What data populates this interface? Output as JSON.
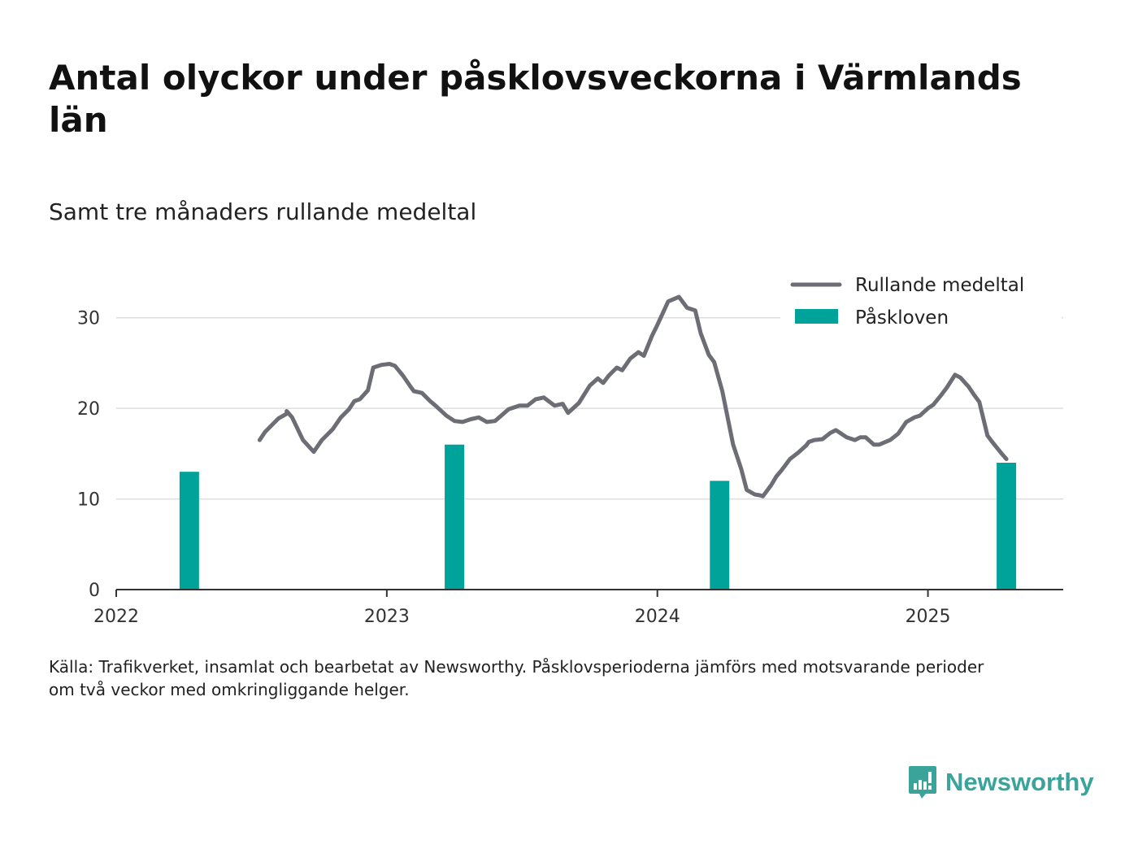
{
  "title": "Antal olyckor under påsklovsveckorna i Värmlands län",
  "subtitle": "Samt tre månaders rullande medeltal",
  "source_line1": "Källa: Trafikverket, insamlat och bearbetat av Newsworthy. Påsklovsperioderna jämförs med motsvarande perioder",
  "source_line2": "om två veckor med omkringliggande helger.",
  "brand": {
    "name": "Newsworthy",
    "icon": "newsworthy-logo-icon",
    "color": "#3aa39a"
  },
  "chart_data": {
    "type": "bar+line",
    "x_axis": {
      "type": "time",
      "range": [
        2022.0,
        2025.5
      ],
      "ticks": [
        "2022",
        "2023",
        "2024",
        "2025"
      ]
    },
    "y_axis": {
      "range": [
        0,
        35
      ],
      "ticks": [
        0,
        10,
        20,
        30
      ],
      "grid": true
    },
    "legend": {
      "placement": "top-right",
      "items": [
        {
          "label": "Rullande medeltal",
          "kind": "line",
          "color": "#6d6e75"
        },
        {
          "label": "Påskloven",
          "kind": "bar",
          "color": "#00a39a"
        }
      ]
    },
    "series": [
      {
        "name": "Påskloven",
        "kind": "bar",
        "color": "#00a39a",
        "points": [
          {
            "x": 2022.27,
            "y": 13
          },
          {
            "x": 2023.25,
            "y": 16
          },
          {
            "x": 2024.23,
            "y": 12
          },
          {
            "x": 2025.29,
            "y": 14
          }
        ]
      },
      {
        "name": "Rullande medeltal",
        "kind": "line",
        "color": "#6d6e75",
        "points": [
          [
            2022.53,
            16.5
          ],
          [
            2022.55,
            17.4
          ],
          [
            2022.6,
            18.9
          ],
          [
            2022.63,
            19.4
          ],
          [
            2022.63,
            19.7
          ],
          [
            2022.65,
            19.0
          ],
          [
            2022.69,
            16.5
          ],
          [
            2022.73,
            15.2
          ],
          [
            2022.76,
            16.5
          ],
          [
            2022.8,
            17.7
          ],
          [
            2022.83,
            19.0
          ],
          [
            2022.86,
            19.9
          ],
          [
            2022.88,
            20.8
          ],
          [
            2022.9,
            21.0
          ],
          [
            2022.93,
            22.0
          ],
          [
            2022.95,
            24.5
          ],
          [
            2022.98,
            24.8
          ],
          [
            2023.01,
            24.9
          ],
          [
            2023.03,
            24.7
          ],
          [
            2023.06,
            23.6
          ],
          [
            2023.09,
            22.3
          ],
          [
            2023.1,
            21.9
          ],
          [
            2023.13,
            21.7
          ],
          [
            2023.16,
            20.8
          ],
          [
            2023.18,
            20.3
          ],
          [
            2023.22,
            19.2
          ],
          [
            2023.25,
            18.6
          ],
          [
            2023.28,
            18.5
          ],
          [
            2023.31,
            18.8
          ],
          [
            2023.34,
            19.0
          ],
          [
            2023.37,
            18.5
          ],
          [
            2023.4,
            18.6
          ],
          [
            2023.45,
            19.9
          ],
          [
            2023.49,
            20.3
          ],
          [
            2023.52,
            20.3
          ],
          [
            2023.55,
            21.0
          ],
          [
            2023.58,
            21.2
          ],
          [
            2023.62,
            20.3
          ],
          [
            2023.65,
            20.5
          ],
          [
            2023.67,
            19.5
          ],
          [
            2023.71,
            20.6
          ],
          [
            2023.75,
            22.5
          ],
          [
            2023.78,
            23.3
          ],
          [
            2023.8,
            22.8
          ],
          [
            2023.82,
            23.6
          ],
          [
            2023.85,
            24.5
          ],
          [
            2023.87,
            24.2
          ],
          [
            2023.9,
            25.5
          ],
          [
            2023.93,
            26.2
          ],
          [
            2023.95,
            25.8
          ],
          [
            2023.98,
            28.0
          ],
          [
            2024.0,
            29.2
          ],
          [
            2024.04,
            31.8
          ],
          [
            2024.08,
            32.3
          ],
          [
            2024.11,
            31.1
          ],
          [
            2024.14,
            30.8
          ],
          [
            2024.16,
            28.3
          ],
          [
            2024.19,
            25.9
          ],
          [
            2024.21,
            25.1
          ],
          [
            2024.24,
            21.9
          ],
          [
            2024.28,
            16.0
          ],
          [
            2024.31,
            13.3
          ],
          [
            2024.33,
            11.0
          ],
          [
            2024.36,
            10.5
          ],
          [
            2024.38,
            10.4
          ],
          [
            2024.39,
            10.3
          ],
          [
            2024.42,
            11.5
          ],
          [
            2024.44,
            12.5
          ],
          [
            2024.46,
            13.2
          ],
          [
            2024.49,
            14.4
          ],
          [
            2024.52,
            15.1
          ],
          [
            2024.55,
            15.9
          ],
          [
            2024.56,
            16.3
          ],
          [
            2024.58,
            16.5
          ],
          [
            2024.61,
            16.6
          ],
          [
            2024.64,
            17.3
          ],
          [
            2024.66,
            17.6
          ],
          [
            2024.7,
            16.8
          ],
          [
            2024.73,
            16.5
          ],
          [
            2024.75,
            16.8
          ],
          [
            2024.77,
            16.8
          ],
          [
            2024.8,
            16.0
          ],
          [
            2024.82,
            16.0
          ],
          [
            2024.86,
            16.5
          ],
          [
            2024.89,
            17.2
          ],
          [
            2024.92,
            18.5
          ],
          [
            2024.95,
            19.0
          ],
          [
            2024.97,
            19.2
          ],
          [
            2025.0,
            20.0
          ],
          [
            2025.02,
            20.4
          ],
          [
            2025.05,
            21.5
          ],
          [
            2025.07,
            22.3
          ],
          [
            2025.1,
            23.7
          ],
          [
            2025.12,
            23.4
          ],
          [
            2025.15,
            22.4
          ],
          [
            2025.17,
            21.5
          ],
          [
            2025.19,
            20.7
          ],
          [
            2025.22,
            17.0
          ],
          [
            2025.24,
            16.2
          ],
          [
            2025.27,
            15.1
          ],
          [
            2025.29,
            14.4
          ]
        ]
      }
    ]
  }
}
